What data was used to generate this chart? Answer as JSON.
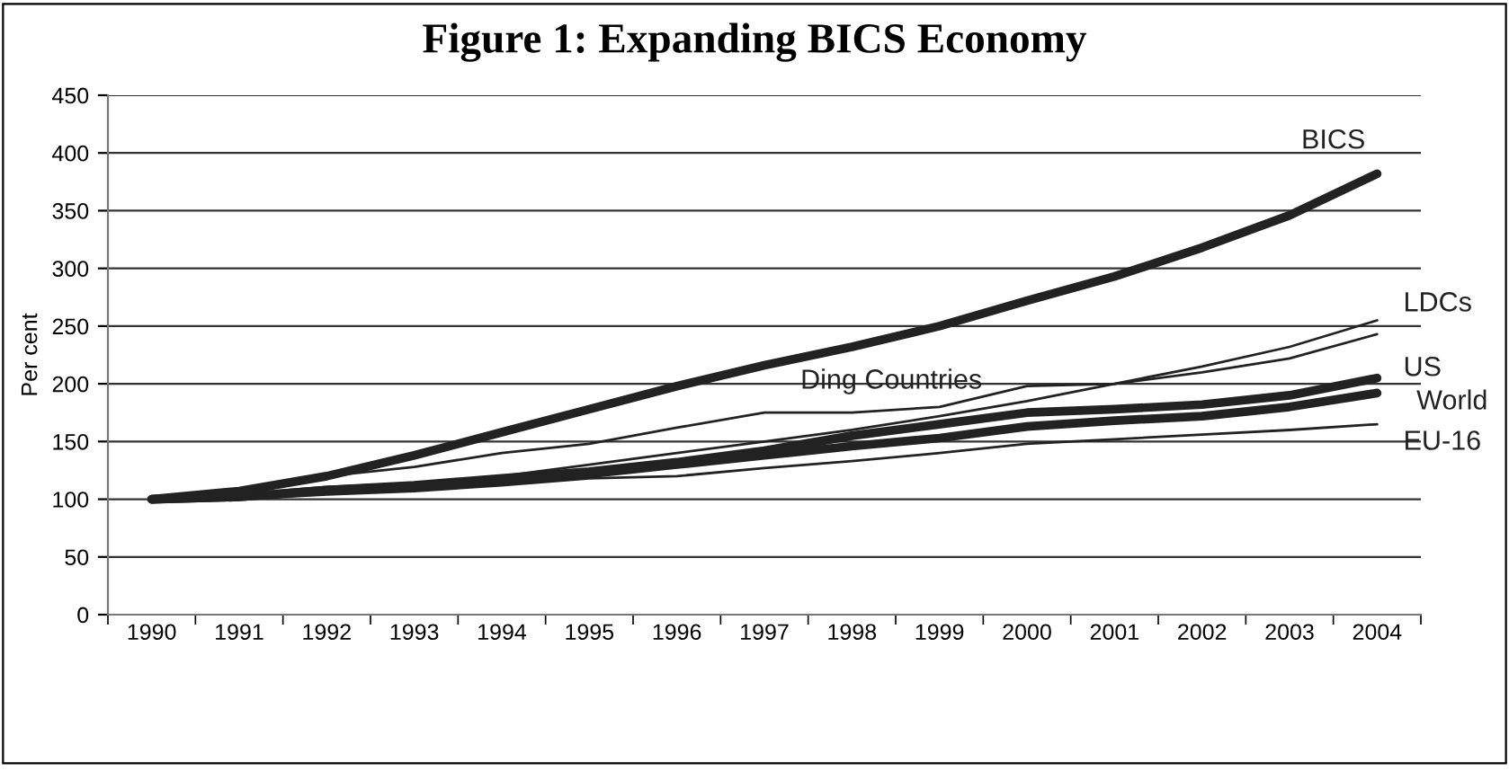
{
  "chart_data": {
    "type": "line",
    "title": "Figure 1: Expanding BICS Economy",
    "ylabel": "Per cent",
    "categories": [
      "1990",
      "1991",
      "1992",
      "1993",
      "1994",
      "1995",
      "1996",
      "1997",
      "1998",
      "1999",
      "2000",
      "2001",
      "2002",
      "2003",
      "2004"
    ],
    "series": [
      {
        "name": "BICS",
        "color": "#222222",
        "values": [
          100,
          107,
          120,
          138,
          158,
          178,
          198,
          216,
          232,
          250,
          272,
          293,
          318,
          346,
          382
        ]
      },
      {
        "name": "LDCs",
        "color": "#222222",
        "values": [
          100,
          103,
          108,
          112,
          120,
          130,
          140,
          150,
          160,
          172,
          185,
          200,
          215,
          232,
          255
        ]
      },
      {
        "name": "Ding Countries",
        "color": "#222222",
        "values": [
          100,
          105,
          120,
          128,
          140,
          148,
          162,
          175,
          175,
          180,
          198,
          200,
          210,
          222,
          243
        ]
      },
      {
        "name": "US",
        "color": "#222222",
        "values": [
          100,
          102,
          108,
          112,
          118,
          124,
          132,
          142,
          155,
          165,
          175,
          178,
          182,
          190,
          205
        ]
      },
      {
        "name": "World",
        "color": "#222222",
        "values": [
          100,
          102,
          108,
          111,
          116,
          122,
          130,
          138,
          146,
          153,
          163,
          168,
          172,
          180,
          192
        ]
      },
      {
        "name": "EU-16",
        "color": "#222222",
        "values": [
          100,
          100,
          104,
          107,
          112,
          118,
          120,
          127,
          133,
          140,
          148,
          152,
          156,
          160,
          165
        ]
      }
    ],
    "ylim": [
      0,
      450
    ],
    "yticks": [
      0,
      50,
      100,
      150,
      200,
      250,
      300,
      350,
      400,
      450
    ],
    "grid": "y",
    "legend": false,
    "marker": "none",
    "line_style": "solid"
  }
}
